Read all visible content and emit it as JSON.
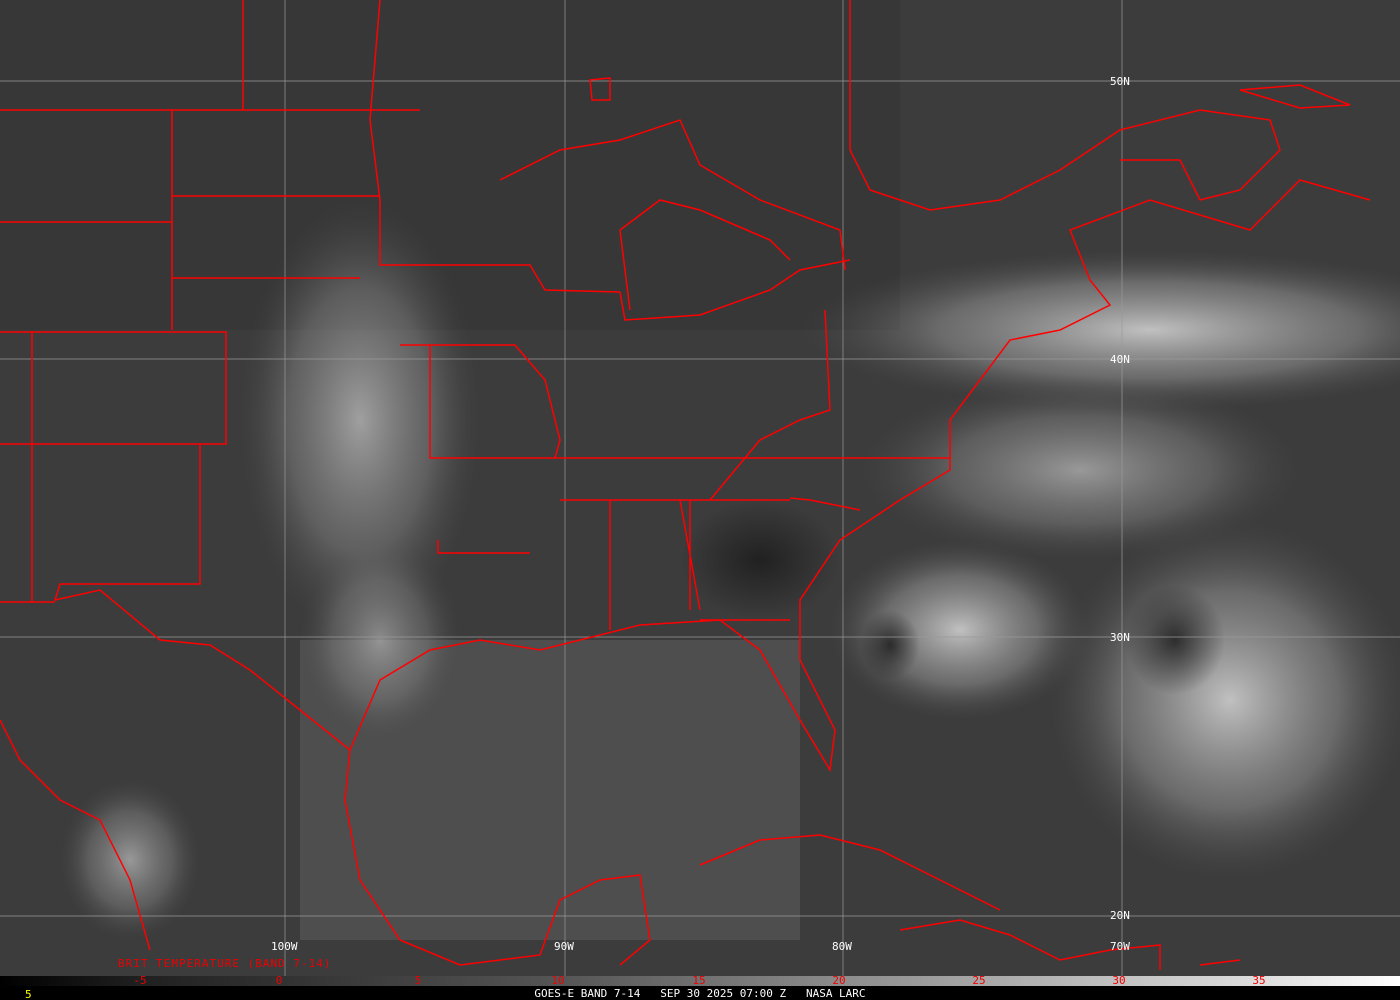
{
  "product_label": "BRIT TEMPERATURE (BAND 7-14)",
  "caption": "GOES-E BAND 7-14   SEP 30 2025 07:00 Z   NASA LARC",
  "frame_number": "5",
  "latitude_labels": [
    "50N",
    "40N",
    "30N",
    "20N"
  ],
  "longitude_labels": [
    "100W",
    "90W",
    "80W",
    "70W"
  ],
  "colorbar": {
    "ticks": [
      "-5",
      "0",
      "5",
      "10",
      "15",
      "20",
      "25",
      "30",
      "35"
    ],
    "colors": {
      "low": "#000000",
      "high": "#ffffff",
      "tick_text": "#e00000"
    }
  },
  "colors": {
    "boundaries": "#ff0000",
    "grid": "#9a9a9a",
    "caption": "#ffffff",
    "frame_number": "#ffff00"
  }
}
